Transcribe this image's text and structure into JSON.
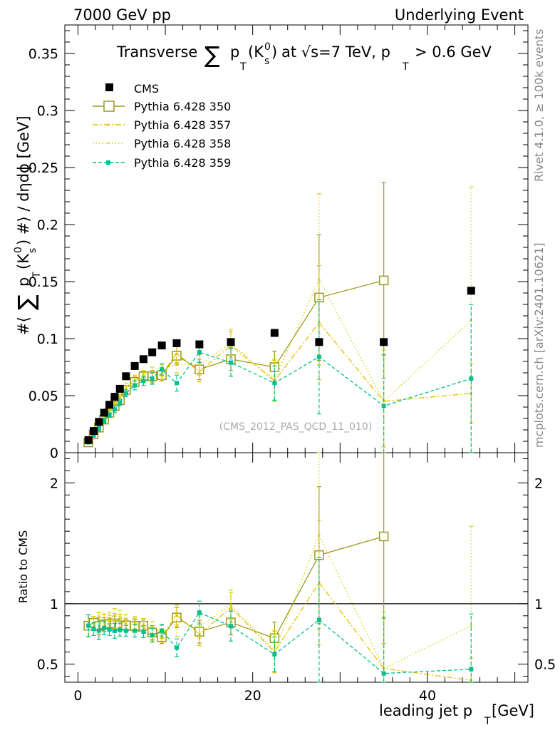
{
  "header": {
    "left": "7000 GeV pp",
    "right": "Underlying Event"
  },
  "side_labels": {
    "rivet": "Rivet 4.1.0, ≥ 100k events",
    "source": "mcplots.cern.ch [arXiv:2401.10621]"
  },
  "watermark": "(CMS_2012_PAS_QCD_11_010)",
  "colors": {
    "cms": "#000000",
    "p350": "#9a9a1e",
    "p357": "#e6be00",
    "p358": "#d2d200",
    "p359": "#00c090"
  },
  "chart_data": {
    "type": "scatter",
    "title": {
      "main": "Transverse",
      "sum": "∑",
      "p": "p",
      "T": "T",
      "K": "(K",
      "zero": "0",
      "s": "s",
      "close": ")",
      "rest": "at √s=7 TeV, p",
      "T2": "T",
      "tail": "> 0.6 GeV"
    },
    "ylabel": {
      "pre": "#⟨",
      "sum": "∑",
      "p": "p",
      "T": "T",
      "K": "(K",
      "zero": "0",
      "s": "s",
      "post": ") #⟩ / dηdϕ [GeV]"
    },
    "ratio_ylabel": "Ratio to CMS",
    "xlabel": {
      "main": "leading jet p",
      "T": "T",
      "unit": "[GeV]"
    },
    "xlim": [
      -1.5,
      51.5
    ],
    "ylim": [
      0,
      0.375
    ],
    "ratio_ylim": [
      0.35,
      2.25
    ],
    "main_yticks": [
      {
        "v": 0,
        "label": "0"
      },
      {
        "v": 0.05,
        "label": "0.05"
      },
      {
        "v": 0.1,
        "label": "0.1"
      },
      {
        "v": 0.15,
        "label": "0.15"
      },
      {
        "v": 0.2,
        "label": "0.2"
      },
      {
        "v": 0.25,
        "label": "0.25"
      },
      {
        "v": 0.3,
        "label": "0.3"
      },
      {
        "v": 0.35,
        "label": "0.35"
      }
    ],
    "ratio_yticks": [
      {
        "v": 0.5,
        "label": "0.5"
      },
      {
        "v": 1,
        "label": "1"
      },
      {
        "v": 2,
        "label": "2"
      }
    ],
    "xticks": [
      {
        "v": 0,
        "label": "0"
      },
      {
        "v": 20,
        "label": "20"
      },
      {
        "v": 40,
        "label": "40"
      }
    ],
    "x": [
      1.2,
      1.8,
      2.4,
      3.0,
      3.6,
      4.2,
      4.8,
      5.5,
      6.5,
      7.5,
      8.5,
      9.6,
      11.3,
      13.9,
      17.5,
      22.5,
      27.6,
      35.0,
      45.0
    ],
    "series": [
      {
        "name": "CMS",
        "key": "cms",
        "style": "data",
        "values": [
          0.011,
          0.019,
          0.027,
          0.035,
          0.042,
          0.049,
          0.056,
          0.067,
          0.076,
          0.082,
          0.088,
          0.094,
          0.096,
          0.095,
          0.097,
          0.105,
          0.097,
          0.097,
          0.142
        ],
        "errors": [
          0.001,
          0.001,
          0.001,
          0.001,
          0.001,
          0.001,
          0.001,
          0.001,
          0.001,
          0.001,
          0.001,
          0.001,
          0.002,
          0.002,
          0.002,
          0.002,
          0.003,
          0.003,
          0.004
        ]
      },
      {
        "name": "Pythia 6.428 350",
        "key": "p350",
        "style": "solid-square",
        "values": [
          0.009,
          0.016,
          0.022,
          0.029,
          0.035,
          0.041,
          0.046,
          0.055,
          0.062,
          0.067,
          0.067,
          0.068,
          0.085,
          0.073,
          0.082,
          0.075,
          0.136,
          0.151,
          null
        ],
        "errors": [
          0.001,
          0.001,
          0.002,
          0.002,
          0.002,
          0.003,
          0.003,
          0.003,
          0.004,
          0.004,
          0.005,
          0.005,
          0.008,
          0.009,
          0.01,
          0.014,
          0.055,
          0.086,
          null
        ]
      },
      {
        "name": "Pythia 6.428 357",
        "key": "p357",
        "style": "dashdot",
        "values": [
          0.009,
          0.016,
          0.023,
          0.03,
          0.036,
          0.042,
          0.048,
          0.056,
          0.063,
          0.066,
          0.066,
          0.069,
          0.087,
          0.071,
          0.094,
          0.063,
          0.114,
          0.045,
          0.052
        ],
        "errors": [
          0.001,
          0.001,
          0.002,
          0.002,
          0.002,
          0.003,
          0.003,
          0.003,
          0.004,
          0.004,
          0.005,
          0.005,
          0.008,
          0.009,
          0.012,
          0.018,
          0.05,
          0.04,
          0.026
        ]
      },
      {
        "name": "Pythia 6.428 358",
        "key": "p358",
        "style": "dotted",
        "values": [
          0.009,
          0.016,
          0.023,
          0.03,
          0.037,
          0.044,
          0.05,
          0.058,
          0.064,
          0.068,
          0.07,
          0.072,
          0.078,
          0.077,
          0.096,
          0.064,
          0.152,
          0.045,
          0.116
        ],
        "errors": [
          0.001,
          0.001,
          0.002,
          0.002,
          0.002,
          0.003,
          0.003,
          0.003,
          0.004,
          0.004,
          0.005,
          0.005,
          0.008,
          0.009,
          0.012,
          0.018,
          0.075,
          0.045,
          0.117
        ]
      },
      {
        "name": "Pythia 6.428 359",
        "key": "p359",
        "style": "dashed-dot",
        "values": [
          0.009,
          0.015,
          0.021,
          0.028,
          0.033,
          0.038,
          0.044,
          0.052,
          0.059,
          0.063,
          0.065,
          0.073,
          0.061,
          0.088,
          0.079,
          0.061,
          0.084,
          0.041,
          0.065
        ],
        "errors": [
          0.001,
          0.001,
          0.002,
          0.002,
          0.002,
          0.003,
          0.003,
          0.003,
          0.004,
          0.004,
          0.005,
          0.005,
          0.007,
          0.009,
          0.012,
          0.015,
          0.05,
          0.045,
          0.065
        ]
      }
    ]
  }
}
